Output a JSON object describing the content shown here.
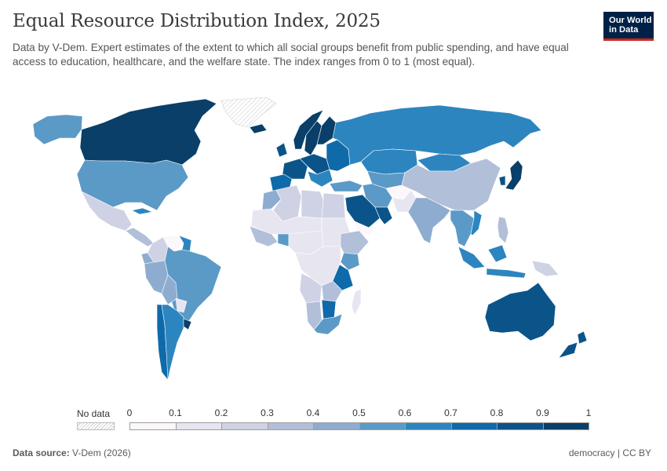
{
  "header": {
    "title": "Equal Resource Distribution Index, 2025",
    "subtitle": "Data by V-Dem. Expert estimates of the extent to which all social groups benefit from public spending, and have equal access to education, healthcare, and the welfare state. The index ranges from 0 to 1 (most equal)."
  },
  "logo": {
    "line1": "Our World",
    "line2": "in Data"
  },
  "legend": {
    "no_data_label": "No data",
    "ticks": [
      "0",
      "0.1",
      "0.2",
      "0.3",
      "0.4",
      "0.5",
      "0.6",
      "0.7",
      "0.8",
      "0.9",
      "1"
    ],
    "colors": [
      "#fbf7fb",
      "#e7e5f0",
      "#cfd2e4",
      "#b1bfd9",
      "#8eaccf",
      "#5b9ac7",
      "#2c85bf",
      "#0f6aa9",
      "#0b5489",
      "#093f68",
      "#082c4a"
    ]
  },
  "footer": {
    "source_label": "Data source:",
    "source_value": "V-Dem (2026)",
    "right": "democracy | CC BY"
  },
  "regions": [
    {
      "name": "Canada",
      "bin": 9
    },
    {
      "name": "Alaska (United States)",
      "bin": 5
    },
    {
      "name": "United States",
      "bin": 5
    },
    {
      "name": "Greenland",
      "bin": -1
    },
    {
      "name": "Mexico",
      "bin": 2
    },
    {
      "name": "Cuba",
      "bin": 6
    },
    {
      "name": "Central America",
      "bin": 3
    },
    {
      "name": "Colombia",
      "bin": 2
    },
    {
      "name": "Venezuela",
      "bin": 0
    },
    {
      "name": "Guyana",
      "bin": 6
    },
    {
      "name": "Ecuador",
      "bin": 4
    },
    {
      "name": "Peru",
      "bin": 4
    },
    {
      "name": "Brazil",
      "bin": 5
    },
    {
      "name": "Bolivia",
      "bin": 4
    },
    {
      "name": "Paraguay",
      "bin": 1
    },
    {
      "name": "Chile",
      "bin": 7
    },
    {
      "name": "Argentina",
      "bin": 6
    },
    {
      "name": "Uruguay",
      "bin": 9
    },
    {
      "name": "Iceland",
      "bin": 9
    },
    {
      "name": "Norway",
      "bin": 9
    },
    {
      "name": "Sweden",
      "bin": 9
    },
    {
      "name": "Finland",
      "bin": 9
    },
    {
      "name": "Western Europe",
      "bin": 8
    },
    {
      "name": "Iberia",
      "bin": 7
    },
    {
      "name": "Central Europe",
      "bin": 8
    },
    {
      "name": "Eastern Europe",
      "bin": 7
    },
    {
      "name": "Balkans",
      "bin": 6
    },
    {
      "name": "Turkey",
      "bin": 5
    },
    {
      "name": "Russia",
      "bin": 6
    },
    {
      "name": "Kazakhstan",
      "bin": 6
    },
    {
      "name": "Central Asia",
      "bin": 5
    },
    {
      "name": "Mongolia",
      "bin": 6
    },
    {
      "name": "China",
      "bin": 3
    },
    {
      "name": "Japan",
      "bin": 9
    },
    {
      "name": "South Korea",
      "bin": 8
    },
    {
      "name": "Iran",
      "bin": 5
    },
    {
      "name": "Afghanistan",
      "bin": 0
    },
    {
      "name": "Pakistan",
      "bin": 1
    },
    {
      "name": "India",
      "bin": 4
    },
    {
      "name": "Saudi Arabia",
      "bin": 8
    },
    {
      "name": "Arabian Gulf states",
      "bin": 8
    },
    {
      "name": "Yemen",
      "bin": 0
    },
    {
      "name": "Southeast Asia",
      "bin": 5
    },
    {
      "name": "Vietnam",
      "bin": 6
    },
    {
      "name": "Indonesia",
      "bin": 6
    },
    {
      "name": "Papua New Guinea",
      "bin": 2
    },
    {
      "name": "Philippines",
      "bin": 3
    },
    {
      "name": "North Africa",
      "bin": 2
    },
    {
      "name": "Morocco",
      "bin": 4
    },
    {
      "name": "Algeria",
      "bin": 2
    },
    {
      "name": "Libya",
      "bin": 2
    },
    {
      "name": "Egypt",
      "bin": 2
    },
    {
      "name": "Sahel",
      "bin": 1
    },
    {
      "name": "West Africa",
      "bin": 3
    },
    {
      "name": "Ghana",
      "bin": 5
    },
    {
      "name": "Central Africa",
      "bin": 1
    },
    {
      "name": "Sudan",
      "bin": 1
    },
    {
      "name": "Ethiopia",
      "bin": 3
    },
    {
      "name": "Kenya",
      "bin": 5
    },
    {
      "name": "Tanzania",
      "bin": 7
    },
    {
      "name": "DR Congo",
      "bin": 1
    },
    {
      "name": "Angola",
      "bin": 2
    },
    {
      "name": "Zambia",
      "bin": 3
    },
    {
      "name": "Namibia",
      "bin": 3
    },
    {
      "name": "Botswana",
      "bin": 7
    },
    {
      "name": "South Africa",
      "bin": 5
    },
    {
      "name": "Madagascar",
      "bin": 1
    },
    {
      "name": "Australia",
      "bin": 8
    },
    {
      "name": "New Zealand",
      "bin": 8
    }
  ]
}
